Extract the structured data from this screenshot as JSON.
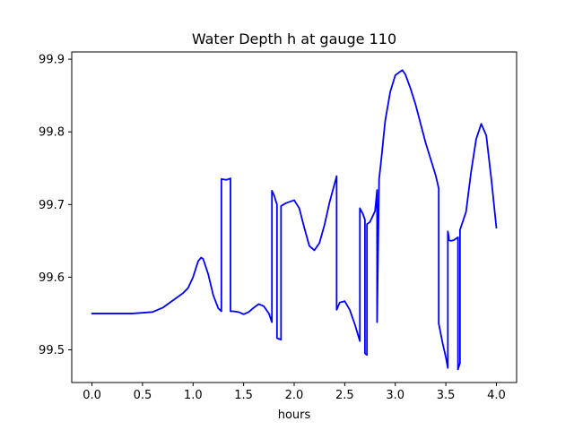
{
  "chart_data": {
    "type": "line",
    "title": "Water Depth h at gauge 110",
    "xlabel": "hours",
    "ylabel": "",
    "xlim": [
      -0.2,
      4.2
    ],
    "ylim": [
      99.455,
      99.91
    ],
    "xticks": [
      0.0,
      0.5,
      1.0,
      1.5,
      2.0,
      2.5,
      3.0,
      3.5,
      4.0
    ],
    "xtick_labels": [
      "0.0",
      "0.5",
      "1.0",
      "1.5",
      "2.0",
      "2.5",
      "3.0",
      "3.5",
      "4.0"
    ],
    "yticks": [
      99.5,
      99.6,
      99.7,
      99.8,
      99.9
    ],
    "ytick_labels": [
      "99.5",
      "99.6",
      "99.7",
      "99.8",
      "99.9"
    ],
    "grid": false,
    "color": "#0000ff",
    "series": [
      {
        "x": [
          0.0,
          0.2,
          0.4,
          0.6,
          0.7,
          0.8,
          0.9,
          0.95,
          1.0,
          1.05,
          1.08,
          1.1,
          1.15,
          1.2,
          1.25,
          1.28,
          1.28,
          1.33,
          1.37,
          1.37,
          1.4,
          1.45,
          1.5,
          1.55,
          1.6,
          1.65,
          1.7,
          1.75,
          1.78,
          1.78,
          1.8,
          1.83,
          1.83,
          1.87,
          1.87,
          1.92,
          2.0,
          2.05,
          2.1,
          2.15,
          2.2,
          2.25,
          2.3,
          2.35,
          2.42,
          2.42,
          2.45,
          2.5,
          2.55,
          2.6,
          2.65,
          2.65,
          2.68,
          2.7,
          2.7,
          2.72,
          2.72,
          2.75,
          2.8,
          2.82,
          2.82,
          2.84,
          2.86,
          2.9,
          2.95,
          3.0,
          3.07,
          3.1,
          3.15,
          3.2,
          3.3,
          3.4,
          3.43,
          3.43,
          3.47,
          3.5,
          3.52,
          3.52,
          3.53,
          3.53,
          3.55,
          3.58,
          3.62,
          3.62,
          3.64,
          3.64,
          3.7,
          3.75,
          3.8,
          3.85,
          3.9,
          3.95,
          4.0
        ],
        "y": [
          99.55,
          99.55,
          99.55,
          99.552,
          99.558,
          99.568,
          99.578,
          99.585,
          99.6,
          99.622,
          99.627,
          99.625,
          99.604,
          99.575,
          99.557,
          99.553,
          99.735,
          99.734,
          99.736,
          99.553,
          99.553,
          99.552,
          99.549,
          99.552,
          99.558,
          99.563,
          99.56,
          99.55,
          99.538,
          99.719,
          99.713,
          99.7,
          99.516,
          99.514,
          99.698,
          99.702,
          99.706,
          99.695,
          99.668,
          99.643,
          99.637,
          99.647,
          99.672,
          99.703,
          99.739,
          99.555,
          99.565,
          99.567,
          99.555,
          99.535,
          99.512,
          99.695,
          99.687,
          99.679,
          99.495,
          99.493,
          99.673,
          99.676,
          99.691,
          99.72,
          99.538,
          99.735,
          99.76,
          99.815,
          99.855,
          99.878,
          99.885,
          99.879,
          99.86,
          99.838,
          99.785,
          99.74,
          99.722,
          99.536,
          99.508,
          99.49,
          99.475,
          99.663,
          99.655,
          99.651,
          99.65,
          99.651,
          99.655,
          99.473,
          99.482,
          99.665,
          99.69,
          99.745,
          99.79,
          99.811,
          99.795,
          99.735,
          99.668
        ]
      }
    ]
  }
}
